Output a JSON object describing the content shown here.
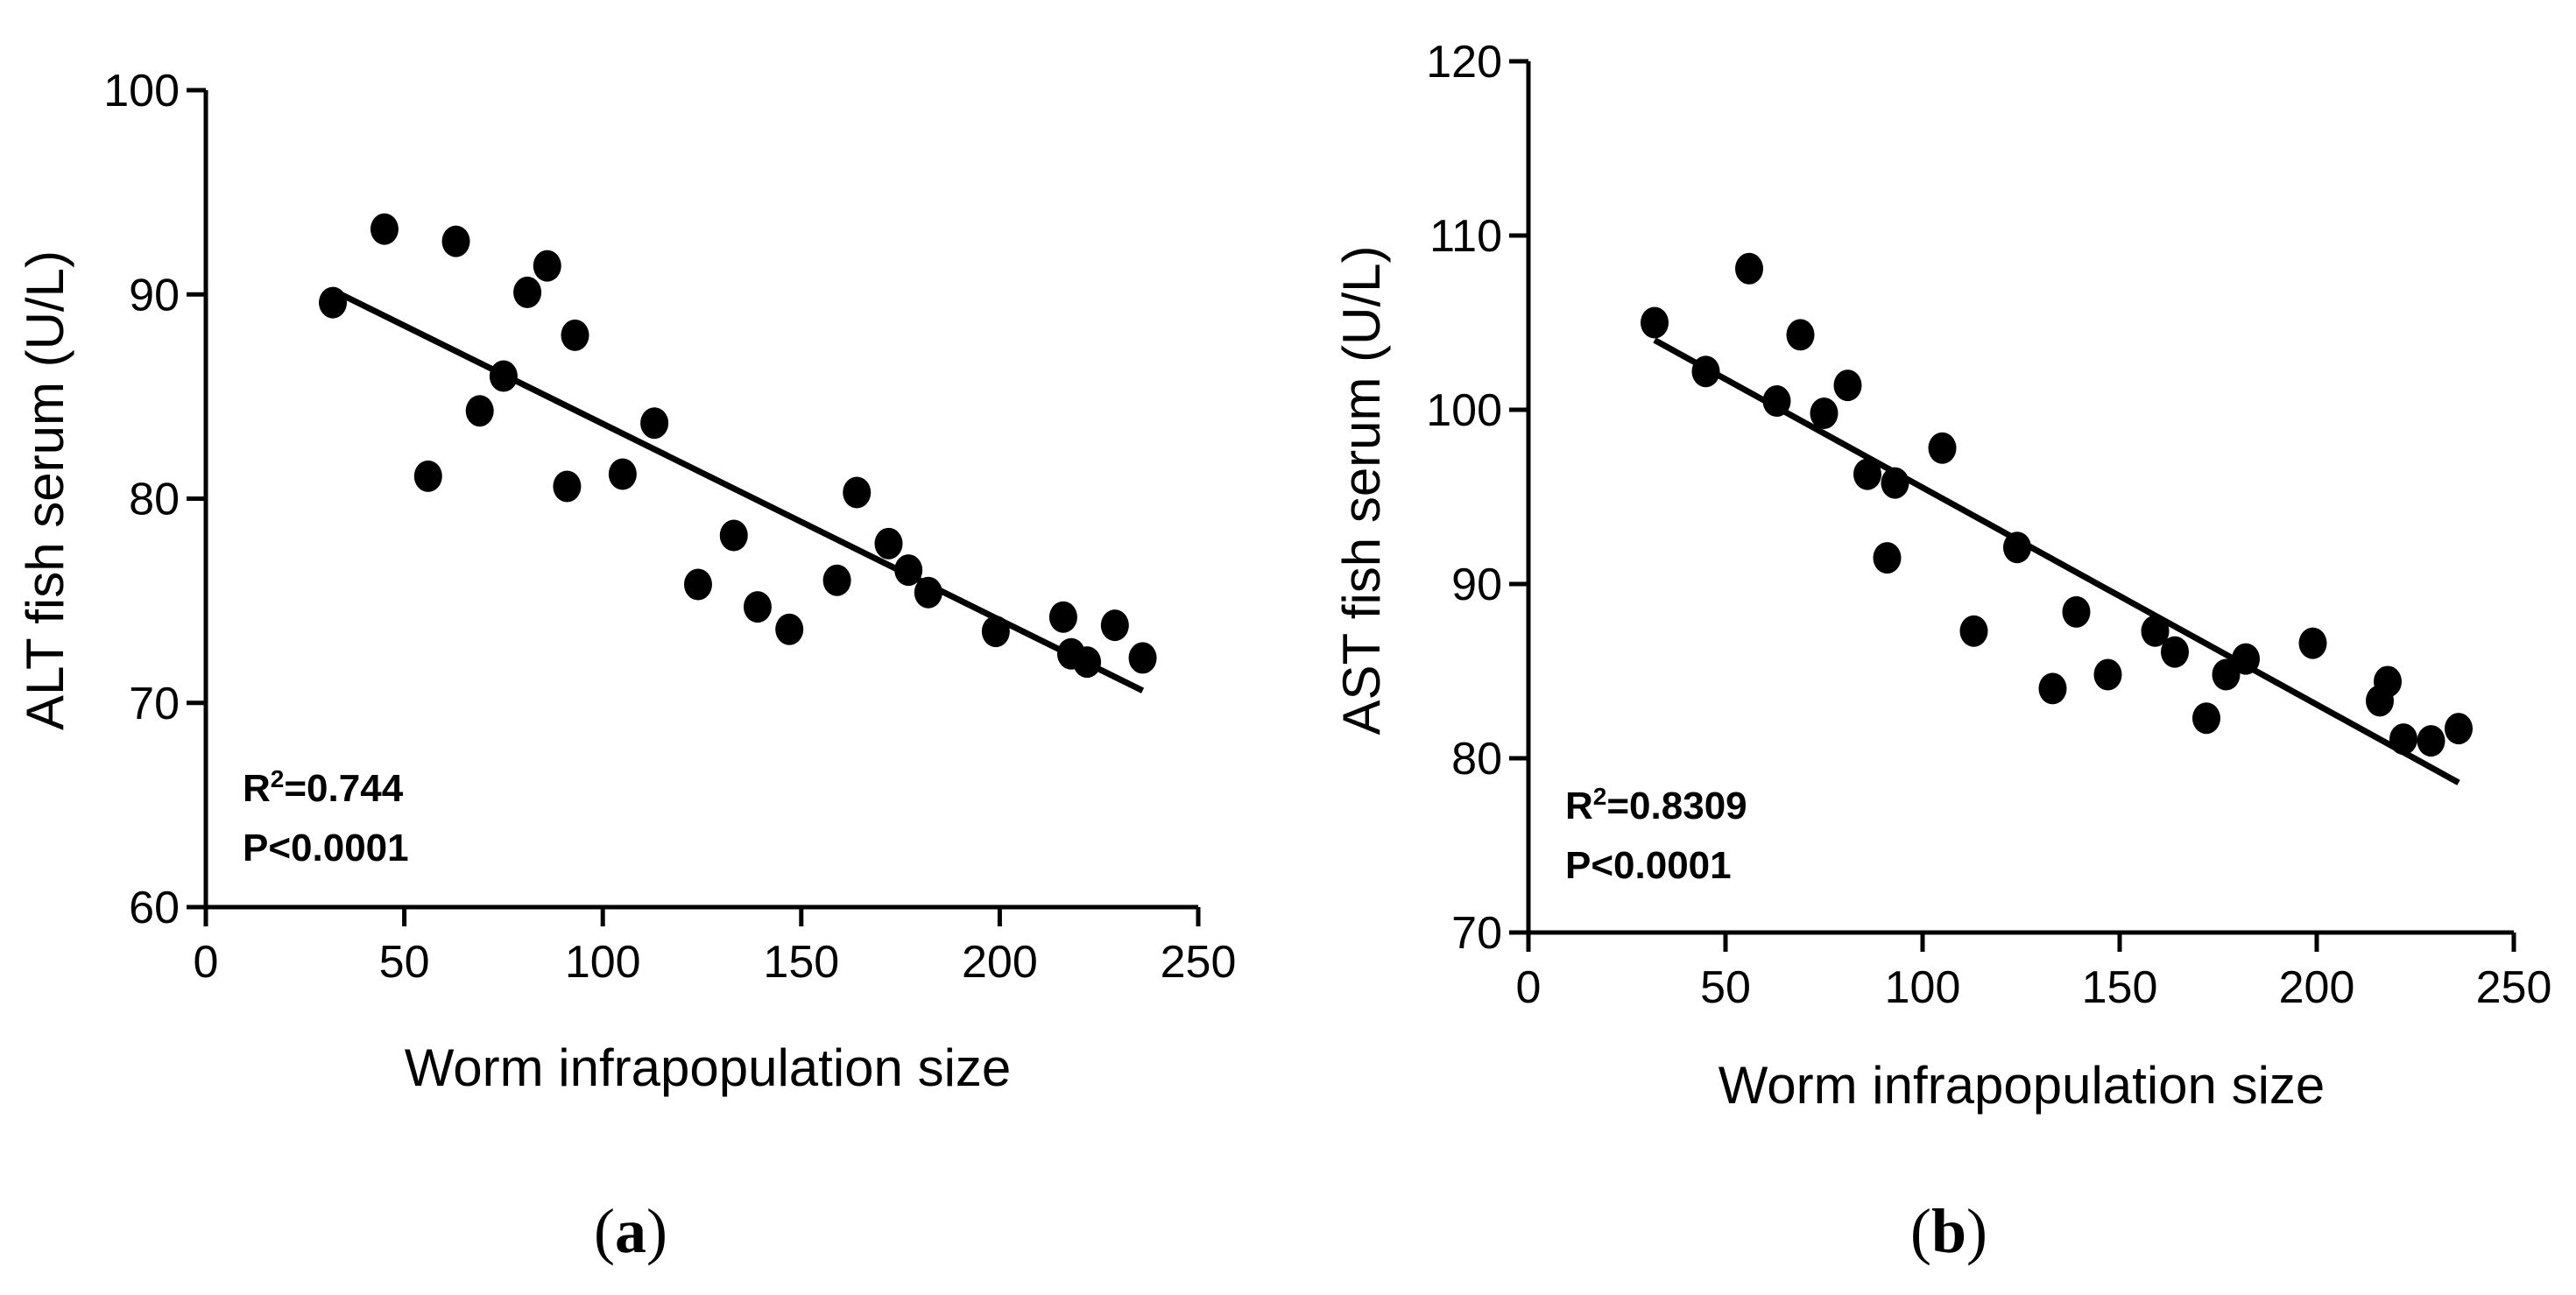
{
  "chart_data": [
    {
      "type": "scatter",
      "panel": "a",
      "panel_label": "a",
      "xlabel": "Worm infrapopulation size",
      "ylabel": "ALT fish serum (U/L)",
      "xlim": [
        0,
        250
      ],
      "ylim": [
        60,
        100
      ],
      "x_ticks": [
        0,
        50,
        100,
        150,
        200,
        250
      ],
      "y_ticks": [
        60,
        70,
        80,
        90,
        100
      ],
      "stats": {
        "r2_label": "R",
        "r2_sup": "2",
        "r2_value": "=0.744",
        "p": "P<0.0001"
      },
      "fit": {
        "x": [
          32,
          236
        ],
        "y": [
          90.2,
          70.6
        ]
      },
      "points": [
        {
          "x": 32,
          "y": 89.6
        },
        {
          "x": 45,
          "y": 93.2
        },
        {
          "x": 56,
          "y": 81.1
        },
        {
          "x": 63,
          "y": 92.6
        },
        {
          "x": 69,
          "y": 84.3
        },
        {
          "x": 75,
          "y": 86.0
        },
        {
          "x": 81,
          "y": 90.1
        },
        {
          "x": 86,
          "y": 91.4
        },
        {
          "x": 91,
          "y": 80.6
        },
        {
          "x": 93,
          "y": 88.0
        },
        {
          "x": 105,
          "y": 81.2
        },
        {
          "x": 113,
          "y": 83.7
        },
        {
          "x": 124,
          "y": 75.8
        },
        {
          "x": 133,
          "y": 78.2
        },
        {
          "x": 139,
          "y": 74.7
        },
        {
          "x": 147,
          "y": 73.6
        },
        {
          "x": 159,
          "y": 76.0
        },
        {
          "x": 164,
          "y": 80.3
        },
        {
          "x": 172,
          "y": 77.8
        },
        {
          "x": 177,
          "y": 76.5
        },
        {
          "x": 182,
          "y": 75.4
        },
        {
          "x": 199,
          "y": 73.5
        },
        {
          "x": 216,
          "y": 74.2
        },
        {
          "x": 218,
          "y": 72.4
        },
        {
          "x": 222,
          "y": 72.0
        },
        {
          "x": 229,
          "y": 73.8
        },
        {
          "x": 236,
          "y": 72.2
        }
      ]
    },
    {
      "type": "scatter",
      "panel": "b",
      "panel_label": "b",
      "xlabel": "Worm infrapopulation size",
      "ylabel": "AST fish serum (U/L)",
      "xlim": [
        0,
        250
      ],
      "ylim": [
        70,
        120
      ],
      "x_ticks": [
        0,
        50,
        100,
        150,
        200,
        250
      ],
      "y_ticks": [
        70,
        80,
        90,
        100,
        110,
        120
      ],
      "stats": {
        "r2_label": "R",
        "r2_sup": "2",
        "r2_value": "=0.8309",
        "p": "P<0.0001"
      },
      "fit": {
        "x": [
          32,
          236
        ],
        "y": [
          104.0,
          78.6
        ]
      },
      "points": [
        {
          "x": 32,
          "y": 105.0
        },
        {
          "x": 45,
          "y": 102.2
        },
        {
          "x": 56,
          "y": 108.1
        },
        {
          "x": 63,
          "y": 100.5
        },
        {
          "x": 69,
          "y": 104.3
        },
        {
          "x": 75,
          "y": 99.8
        },
        {
          "x": 81,
          "y": 101.4
        },
        {
          "x": 86,
          "y": 96.3
        },
        {
          "x": 91,
          "y": 91.5
        },
        {
          "x": 93,
          "y": 95.8
        },
        {
          "x": 105,
          "y": 97.8
        },
        {
          "x": 113,
          "y": 87.3
        },
        {
          "x": 124,
          "y": 92.1
        },
        {
          "x": 133,
          "y": 84.0
        },
        {
          "x": 139,
          "y": 88.4
        },
        {
          "x": 147,
          "y": 84.8
        },
        {
          "x": 159,
          "y": 87.3
        },
        {
          "x": 164,
          "y": 86.1
        },
        {
          "x": 172,
          "y": 82.3
        },
        {
          "x": 177,
          "y": 84.8
        },
        {
          "x": 182,
          "y": 85.7
        },
        {
          "x": 199,
          "y": 86.6
        },
        {
          "x": 216,
          "y": 83.3
        },
        {
          "x": 218,
          "y": 84.4
        },
        {
          "x": 222,
          "y": 81.1
        },
        {
          "x": 229,
          "y": 81.0
        },
        {
          "x": 236,
          "y": 81.7
        }
      ]
    }
  ]
}
